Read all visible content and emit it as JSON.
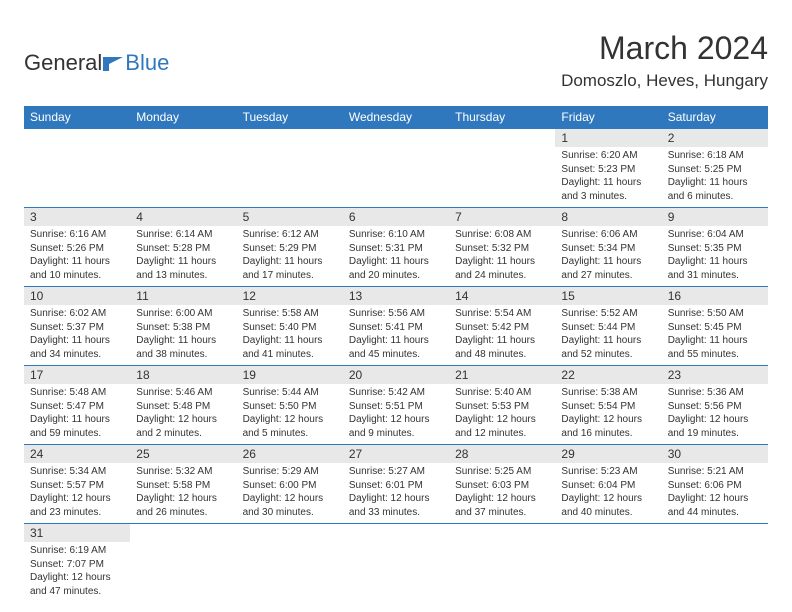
{
  "logo": {
    "text1": "General",
    "text2": "Blue",
    "color1": "#333333",
    "color2": "#3078bd"
  },
  "header": {
    "title": "March 2024",
    "location": "Domoszlo, Heves, Hungary"
  },
  "style": {
    "header_bg": "#3078bd",
    "header_fg": "#ffffff",
    "daynum_bg": "#e8e8e8",
    "border_color": "#3078bd",
    "text_color": "#333333",
    "page_bg": "#ffffff",
    "month_title_fontsize": 32,
    "location_fontsize": 17,
    "dayheader_fontsize": 12,
    "daynumber_fontsize": 12,
    "details_fontsize": 10
  },
  "day_headers": [
    "Sunday",
    "Monday",
    "Tuesday",
    "Wednesday",
    "Thursday",
    "Friday",
    "Saturday"
  ],
  "weeks": [
    [
      null,
      null,
      null,
      null,
      null,
      {
        "num": "1",
        "sunrise": "Sunrise: 6:20 AM",
        "sunset": "Sunset: 5:23 PM",
        "daylight1": "Daylight: 11 hours",
        "daylight2": "and 3 minutes."
      },
      {
        "num": "2",
        "sunrise": "Sunrise: 6:18 AM",
        "sunset": "Sunset: 5:25 PM",
        "daylight1": "Daylight: 11 hours",
        "daylight2": "and 6 minutes."
      }
    ],
    [
      {
        "num": "3",
        "sunrise": "Sunrise: 6:16 AM",
        "sunset": "Sunset: 5:26 PM",
        "daylight1": "Daylight: 11 hours",
        "daylight2": "and 10 minutes."
      },
      {
        "num": "4",
        "sunrise": "Sunrise: 6:14 AM",
        "sunset": "Sunset: 5:28 PM",
        "daylight1": "Daylight: 11 hours",
        "daylight2": "and 13 minutes."
      },
      {
        "num": "5",
        "sunrise": "Sunrise: 6:12 AM",
        "sunset": "Sunset: 5:29 PM",
        "daylight1": "Daylight: 11 hours",
        "daylight2": "and 17 minutes."
      },
      {
        "num": "6",
        "sunrise": "Sunrise: 6:10 AM",
        "sunset": "Sunset: 5:31 PM",
        "daylight1": "Daylight: 11 hours",
        "daylight2": "and 20 minutes."
      },
      {
        "num": "7",
        "sunrise": "Sunrise: 6:08 AM",
        "sunset": "Sunset: 5:32 PM",
        "daylight1": "Daylight: 11 hours",
        "daylight2": "and 24 minutes."
      },
      {
        "num": "8",
        "sunrise": "Sunrise: 6:06 AM",
        "sunset": "Sunset: 5:34 PM",
        "daylight1": "Daylight: 11 hours",
        "daylight2": "and 27 minutes."
      },
      {
        "num": "9",
        "sunrise": "Sunrise: 6:04 AM",
        "sunset": "Sunset: 5:35 PM",
        "daylight1": "Daylight: 11 hours",
        "daylight2": "and 31 minutes."
      }
    ],
    [
      {
        "num": "10",
        "sunrise": "Sunrise: 6:02 AM",
        "sunset": "Sunset: 5:37 PM",
        "daylight1": "Daylight: 11 hours",
        "daylight2": "and 34 minutes."
      },
      {
        "num": "11",
        "sunrise": "Sunrise: 6:00 AM",
        "sunset": "Sunset: 5:38 PM",
        "daylight1": "Daylight: 11 hours",
        "daylight2": "and 38 minutes."
      },
      {
        "num": "12",
        "sunrise": "Sunrise: 5:58 AM",
        "sunset": "Sunset: 5:40 PM",
        "daylight1": "Daylight: 11 hours",
        "daylight2": "and 41 minutes."
      },
      {
        "num": "13",
        "sunrise": "Sunrise: 5:56 AM",
        "sunset": "Sunset: 5:41 PM",
        "daylight1": "Daylight: 11 hours",
        "daylight2": "and 45 minutes."
      },
      {
        "num": "14",
        "sunrise": "Sunrise: 5:54 AM",
        "sunset": "Sunset: 5:42 PM",
        "daylight1": "Daylight: 11 hours",
        "daylight2": "and 48 minutes."
      },
      {
        "num": "15",
        "sunrise": "Sunrise: 5:52 AM",
        "sunset": "Sunset: 5:44 PM",
        "daylight1": "Daylight: 11 hours",
        "daylight2": "and 52 minutes."
      },
      {
        "num": "16",
        "sunrise": "Sunrise: 5:50 AM",
        "sunset": "Sunset: 5:45 PM",
        "daylight1": "Daylight: 11 hours",
        "daylight2": "and 55 minutes."
      }
    ],
    [
      {
        "num": "17",
        "sunrise": "Sunrise: 5:48 AM",
        "sunset": "Sunset: 5:47 PM",
        "daylight1": "Daylight: 11 hours",
        "daylight2": "and 59 minutes."
      },
      {
        "num": "18",
        "sunrise": "Sunrise: 5:46 AM",
        "sunset": "Sunset: 5:48 PM",
        "daylight1": "Daylight: 12 hours",
        "daylight2": "and 2 minutes."
      },
      {
        "num": "19",
        "sunrise": "Sunrise: 5:44 AM",
        "sunset": "Sunset: 5:50 PM",
        "daylight1": "Daylight: 12 hours",
        "daylight2": "and 5 minutes."
      },
      {
        "num": "20",
        "sunrise": "Sunrise: 5:42 AM",
        "sunset": "Sunset: 5:51 PM",
        "daylight1": "Daylight: 12 hours",
        "daylight2": "and 9 minutes."
      },
      {
        "num": "21",
        "sunrise": "Sunrise: 5:40 AM",
        "sunset": "Sunset: 5:53 PM",
        "daylight1": "Daylight: 12 hours",
        "daylight2": "and 12 minutes."
      },
      {
        "num": "22",
        "sunrise": "Sunrise: 5:38 AM",
        "sunset": "Sunset: 5:54 PM",
        "daylight1": "Daylight: 12 hours",
        "daylight2": "and 16 minutes."
      },
      {
        "num": "23",
        "sunrise": "Sunrise: 5:36 AM",
        "sunset": "Sunset: 5:56 PM",
        "daylight1": "Daylight: 12 hours",
        "daylight2": "and 19 minutes."
      }
    ],
    [
      {
        "num": "24",
        "sunrise": "Sunrise: 5:34 AM",
        "sunset": "Sunset: 5:57 PM",
        "daylight1": "Daylight: 12 hours",
        "daylight2": "and 23 minutes."
      },
      {
        "num": "25",
        "sunrise": "Sunrise: 5:32 AM",
        "sunset": "Sunset: 5:58 PM",
        "daylight1": "Daylight: 12 hours",
        "daylight2": "and 26 minutes."
      },
      {
        "num": "26",
        "sunrise": "Sunrise: 5:29 AM",
        "sunset": "Sunset: 6:00 PM",
        "daylight1": "Daylight: 12 hours",
        "daylight2": "and 30 minutes."
      },
      {
        "num": "27",
        "sunrise": "Sunrise: 5:27 AM",
        "sunset": "Sunset: 6:01 PM",
        "daylight1": "Daylight: 12 hours",
        "daylight2": "and 33 minutes."
      },
      {
        "num": "28",
        "sunrise": "Sunrise: 5:25 AM",
        "sunset": "Sunset: 6:03 PM",
        "daylight1": "Daylight: 12 hours",
        "daylight2": "and 37 minutes."
      },
      {
        "num": "29",
        "sunrise": "Sunrise: 5:23 AM",
        "sunset": "Sunset: 6:04 PM",
        "daylight1": "Daylight: 12 hours",
        "daylight2": "and 40 minutes."
      },
      {
        "num": "30",
        "sunrise": "Sunrise: 5:21 AM",
        "sunset": "Sunset: 6:06 PM",
        "daylight1": "Daylight: 12 hours",
        "daylight2": "and 44 minutes."
      }
    ],
    [
      {
        "num": "31",
        "sunrise": "Sunrise: 6:19 AM",
        "sunset": "Sunset: 7:07 PM",
        "daylight1": "Daylight: 12 hours",
        "daylight2": "and 47 minutes."
      },
      null,
      null,
      null,
      null,
      null,
      null
    ]
  ]
}
